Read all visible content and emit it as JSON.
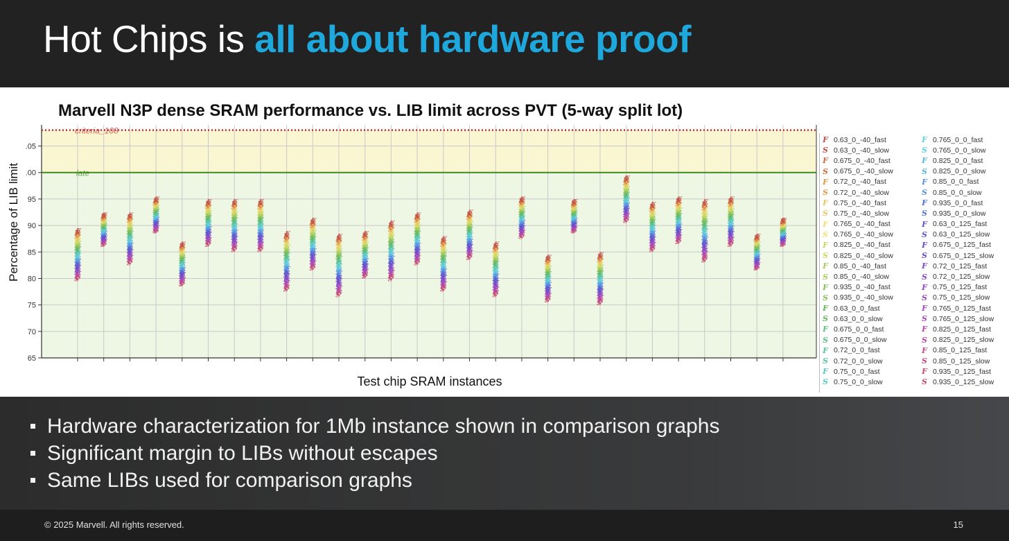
{
  "slide": {
    "title_plain": "Hot Chips is ",
    "title_accent": "all about hardware proof",
    "accent_color": "#1fa8dc",
    "bullets": [
      "Hardware characterization for 1Mb instance shown in comparison graphs",
      "Significant margin to LIBs without escapes",
      "Same LIBs used for comparison graphs"
    ],
    "copyright": "© 2025 Marvell. All rights reserved.",
    "page_number": "15"
  },
  "chart_data": {
    "type": "scatter",
    "title": "Marvell N3P dense SRAM performance vs. LIB limit across PVT (5-way split lot)",
    "xlabel": "Test chip SRAM instances",
    "ylabel": "Percentage of LIB limit",
    "ylim": [
      65,
      109
    ],
    "yticks": [
      65,
      70,
      75,
      80,
      85,
      90,
      95,
      ".00",
      ".05"
    ],
    "grid": true,
    "legend_position": "right",
    "reference_lines": [
      {
        "label": "criteria_108",
        "value": 108,
        "style": "dotted",
        "color": "#cc2b2b"
      },
      {
        "label": "late",
        "value": 100,
        "style": "solid",
        "color": "#3a8a1c"
      }
    ],
    "bands": [
      {
        "from": 100,
        "to": 108,
        "color": "#fbf6d2"
      },
      {
        "from": 65,
        "to": 100,
        "color": "#eef7e3"
      }
    ],
    "instances": [
      {
        "min": 80,
        "max": 89
      },
      {
        "min": 86.5,
        "max": 92
      },
      {
        "min": 83,
        "max": 92
      },
      {
        "min": 89,
        "max": 95
      },
      {
        "min": 79,
        "max": 86.5
      },
      {
        "min": 86.5,
        "max": 94.5
      },
      {
        "min": 85.5,
        "max": 94.5
      },
      {
        "min": 85.5,
        "max": 94.5
      },
      {
        "min": 78,
        "max": 88.5
      },
      {
        "min": 82,
        "max": 91
      },
      {
        "min": 77,
        "max": 88
      },
      {
        "min": 80.5,
        "max": 88.5
      },
      {
        "min": 80,
        "max": 90.5
      },
      {
        "min": 83,
        "max": 92
      },
      {
        "min": 78,
        "max": 87.5
      },
      {
        "min": 84,
        "max": 92.5
      },
      {
        "min": 77,
        "max": 86.5
      },
      {
        "min": 88,
        "max": 95
      },
      {
        "min": 76,
        "max": 84
      },
      {
        "min": 89,
        "max": 94.5
      },
      {
        "min": 75.5,
        "max": 84.5
      },
      {
        "min": 91,
        "max": 99
      },
      {
        "min": 85.5,
        "max": 94
      },
      {
        "min": 87,
        "max": 95
      },
      {
        "min": 83.5,
        "max": 94.5
      },
      {
        "min": 86.5,
        "max": 95
      },
      {
        "min": 82,
        "max": 88
      },
      {
        "min": 86.5,
        "max": 91
      }
    ],
    "series": [
      {
        "name": "0.63_0_-40_fast",
        "marker": "F",
        "color": "#c0504d"
      },
      {
        "name": "0.63_0_-40_slow",
        "marker": "S",
        "color": "#c0504d"
      },
      {
        "name": "0.675_0_-40_fast",
        "marker": "F",
        "color": "#d2693c"
      },
      {
        "name": "0.675_0_-40_slow",
        "marker": "S",
        "color": "#d2693c"
      },
      {
        "name": "0.72_0_-40_fast",
        "marker": "F",
        "color": "#e29a4a"
      },
      {
        "name": "0.72_0_-40_slow",
        "marker": "S",
        "color": "#e29a4a"
      },
      {
        "name": "0.75_0_-40_fast",
        "marker": "F",
        "color": "#e8c66a"
      },
      {
        "name": "0.75_0_-40_slow",
        "marker": "S",
        "color": "#e8c66a"
      },
      {
        "name": "0.765_0_-40_fast",
        "marker": "F",
        "color": "#f0e070"
      },
      {
        "name": "0.765_0_-40_slow",
        "marker": "S",
        "color": "#f0e070"
      },
      {
        "name": "0.825_0_-40_fast",
        "marker": "F",
        "color": "#cbd660"
      },
      {
        "name": "0.825_0_-40_slow",
        "marker": "S",
        "color": "#cbd660"
      },
      {
        "name": "0.85_0_-40_fast",
        "marker": "F",
        "color": "#a7cc5a"
      },
      {
        "name": "0.85_0_-40_slow",
        "marker": "S",
        "color": "#a7cc5a"
      },
      {
        "name": "0.935_0_-40_fast",
        "marker": "F",
        "color": "#84c05a"
      },
      {
        "name": "0.935_0_-40_slow",
        "marker": "S",
        "color": "#84c05a"
      },
      {
        "name": "0.63_0_0_fast",
        "marker": "F",
        "color": "#64b55c"
      },
      {
        "name": "0.63_0_0_slow",
        "marker": "S",
        "color": "#64b55c"
      },
      {
        "name": "0.675_0_0_fast",
        "marker": "F",
        "color": "#5bbf7e"
      },
      {
        "name": "0.675_0_0_slow",
        "marker": "S",
        "color": "#5bbf7e"
      },
      {
        "name": "0.72_0_0_fast",
        "marker": "F",
        "color": "#58c4a2"
      },
      {
        "name": "0.72_0_0_slow",
        "marker": "S",
        "color": "#58c4a2"
      },
      {
        "name": "0.75_0_0_fast",
        "marker": "F",
        "color": "#5ccac4"
      },
      {
        "name": "0.75_0_0_slow",
        "marker": "S",
        "color": "#5ccac4"
      },
      {
        "name": "0.765_0_0_fast",
        "marker": "F",
        "color": "#62cfe0"
      },
      {
        "name": "0.765_0_0_slow",
        "marker": "S",
        "color": "#62cfe0"
      },
      {
        "name": "0.825_0_0_fast",
        "marker": "F",
        "color": "#5bb3e6"
      },
      {
        "name": "0.825_0_0_slow",
        "marker": "S",
        "color": "#5bb3e6"
      },
      {
        "name": "0.85_0_0_fast",
        "marker": "F",
        "color": "#5592e0"
      },
      {
        "name": "0.85_0_0_slow",
        "marker": "S",
        "color": "#5592e0"
      },
      {
        "name": "0.935_0_0_fast",
        "marker": "F",
        "color": "#4f70d6"
      },
      {
        "name": "0.935_0_0_slow",
        "marker": "S",
        "color": "#4f70d6"
      },
      {
        "name": "0.63_0_125_fast",
        "marker": "F",
        "color": "#5a55d0"
      },
      {
        "name": "0.63_0_125_slow",
        "marker": "S",
        "color": "#5a55d0"
      },
      {
        "name": "0.675_0_125_fast",
        "marker": "F",
        "color": "#6a4cc8"
      },
      {
        "name": "0.675_0_125_slow",
        "marker": "S",
        "color": "#6a4cc8"
      },
      {
        "name": "0.72_0_125_fast",
        "marker": "F",
        "color": "#7e4ac6"
      },
      {
        "name": "0.72_0_125_slow",
        "marker": "S",
        "color": "#7e4ac6"
      },
      {
        "name": "0.75_0_125_fast",
        "marker": "F",
        "color": "#9349c4"
      },
      {
        "name": "0.75_0_125_slow",
        "marker": "S",
        "color": "#9349c4"
      },
      {
        "name": "0.765_0_125_fast",
        "marker": "F",
        "color": "#a748bf"
      },
      {
        "name": "0.765_0_125_slow",
        "marker": "S",
        "color": "#a748bf"
      },
      {
        "name": "0.825_0_125_fast",
        "marker": "F",
        "color": "#b8479f"
      },
      {
        "name": "0.825_0_125_slow",
        "marker": "S",
        "color": "#b8479f"
      },
      {
        "name": "0.85_0_125_fast",
        "marker": "F",
        "color": "#c44a82"
      },
      {
        "name": "0.85_0_125_slow",
        "marker": "S",
        "color": "#c44a82"
      },
      {
        "name": "0.935_0_125_fast",
        "marker": "F",
        "color": "#c84c6a"
      },
      {
        "name": "0.935_0_125_slow",
        "marker": "S",
        "color": "#c84c6a"
      }
    ]
  }
}
